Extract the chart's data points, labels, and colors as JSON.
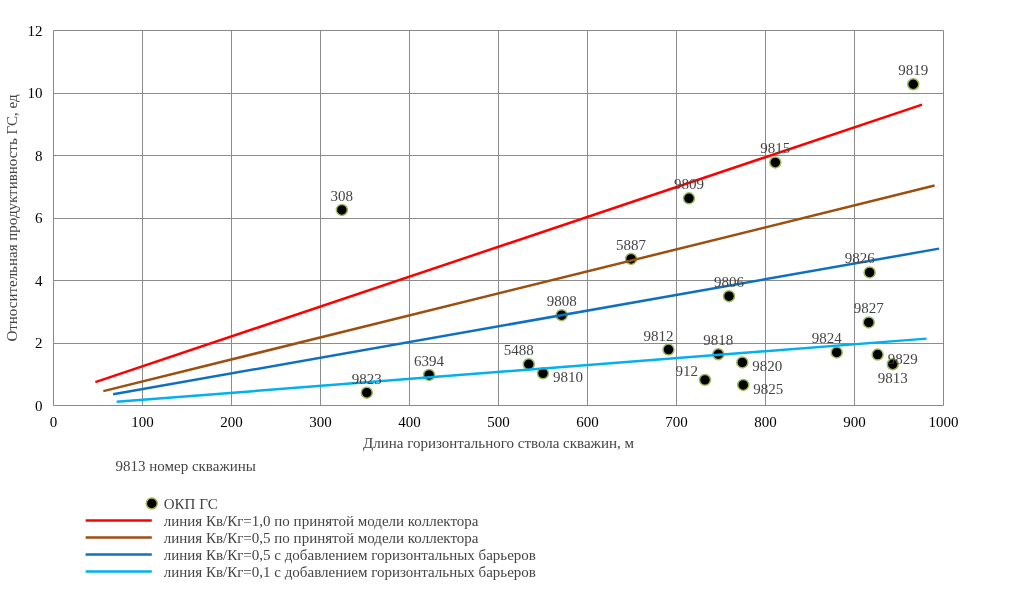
{
  "chart_data": {
    "type": "scatter",
    "xlabel": "Длина горизонтального ствола скважин, м",
    "ylabel": "Относительная продуктивность ГС, ед",
    "xlim": [
      0,
      1000
    ],
    "xticks": [
      0,
      100,
      200,
      300,
      400,
      500,
      600,
      700,
      800,
      900,
      1000
    ],
    "ylim": [
      0,
      12
    ],
    "yticks": [
      0,
      2,
      4,
      6,
      8,
      10,
      12
    ],
    "grid": true,
    "legend": "bottom",
    "annotations": [
      "9813 номер скважины",
      {
        "text": "308",
        "x": 324,
        "y": 6.26
      },
      {
        "text": "9823",
        "x": 352,
        "y": 0.41
      },
      {
        "text": "6394",
        "x": 422,
        "y": 0.98
      },
      {
        "text": "5488",
        "x": 534,
        "y": 1.32
      },
      {
        "text": "9810",
        "x": 550,
        "y": 1.03
      },
      {
        "text": "9808",
        "x": 571,
        "y": 2.89
      },
      {
        "text": "5887",
        "x": 649,
        "y": 4.69
      },
      {
        "text": "9812",
        "x": 691,
        "y": 1.79
      },
      {
        "text": "9809",
        "x": 714,
        "y": 6.63
      },
      {
        "text": "912",
        "x": 732,
        "y": 0.82
      },
      {
        "text": "9818",
        "x": 747,
        "y": 1.64
      },
      {
        "text": "9806",
        "x": 759,
        "y": 3.5
      },
      {
        "text": "9820",
        "x": 774,
        "y": 1.38
      },
      {
        "text": "9825",
        "x": 775,
        "y": 0.66
      },
      {
        "text": "9815",
        "x": 811,
        "y": 7.78
      },
      {
        "text": "9824",
        "x": 880,
        "y": 1.7
      },
      {
        "text": "9827",
        "x": 916,
        "y": 2.66
      },
      {
        "text": "9826",
        "x": 917,
        "y": 4.26
      },
      {
        "text": "9829",
        "x": 926,
        "y": 1.63
      },
      {
        "text": "9813",
        "x": 943,
        "y": 1.32
      },
      {
        "text": "9819",
        "x": 966,
        "y": 10.28
      }
    ],
    "series": [
      {
        "marker": "circle",
        "name": "ОКП ГС",
        "color": "#000000",
        "x": [
          324,
          352,
          422,
          534,
          550,
          571,
          649,
          691,
          714,
          732,
          747,
          759,
          774,
          775,
          811,
          880,
          916,
          917,
          926,
          943,
          966
        ],
        "values": [
          6.26,
          0.41,
          0.98,
          1.32,
          1.03,
          2.89,
          4.69,
          1.79,
          6.63,
          0.82,
          1.64,
          3.5,
          1.38,
          0.66,
          7.78,
          1.7,
          2.66,
          4.26,
          1.63,
          1.32,
          10.28
        ]
      },
      {
        "type": "line",
        "name": "линия Кв/Кг=1,0 по принятой модели коллектора",
        "color": "#ff0000",
        "x": [
          47,
          976
        ],
        "values": [
          0.75,
          9.63
        ]
      },
      {
        "type": "line",
        "name": "линия Кв/Кг=0,5 по принятой модели коллектора",
        "color": "#9c4f0f",
        "x": [
          56,
          990
        ],
        "values": [
          0.46,
          7.04
        ]
      },
      {
        "type": "line",
        "name": "линия Кв/Кг=0,5 с добавлением горизонтальных барьеров",
        "color": "#1070c0",
        "x": [
          67,
          995
        ],
        "values": [
          0.36,
          5.02
        ]
      },
      {
        "type": "line",
        "name": "линия Кв/Кг=0,1 с добавлением горизонтальных барьеров",
        "color": "#00b0f0",
        "x": [
          71,
          981
        ],
        "values": [
          0.12,
          2.14
        ]
      }
    ]
  }
}
